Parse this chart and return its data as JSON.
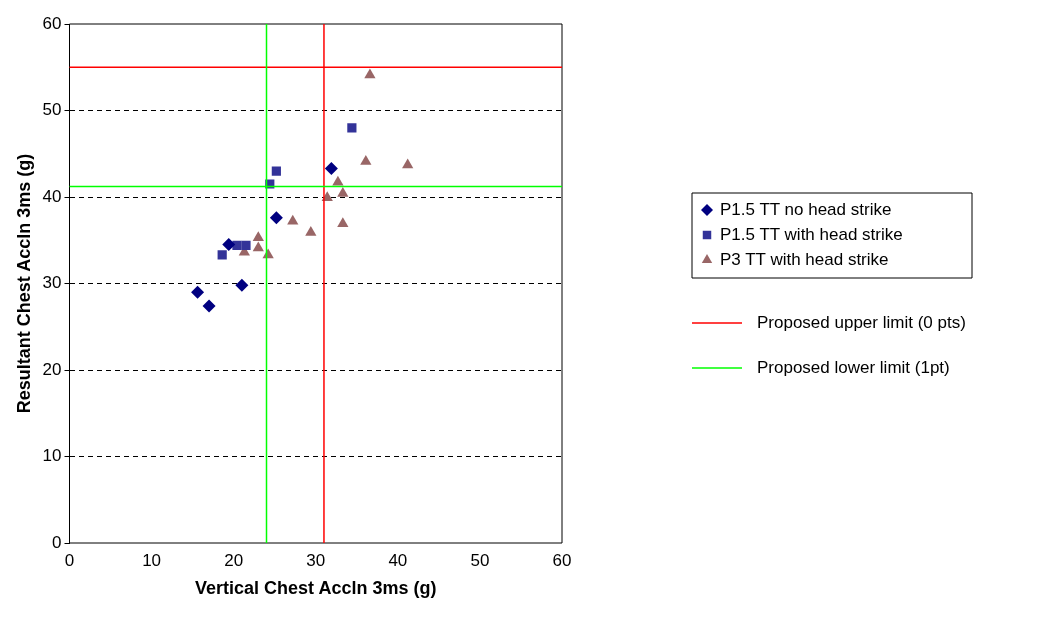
{
  "chart_data": {
    "type": "scatter",
    "xlabel": "Vertical Chest Accln 3ms (g)",
    "ylabel": "Resultant Chest Accln 3ms (g)",
    "xlim": [
      0,
      60
    ],
    "xticks": [
      0,
      10,
      20,
      30,
      40,
      50,
      60
    ],
    "ylim": [
      0,
      60
    ],
    "yticks": [
      0,
      10,
      20,
      30,
      40,
      50,
      60
    ],
    "grid": "y",
    "legend": "right",
    "series": [
      {
        "name": "P1.5 TT no head strike",
        "color": "#000080",
        "marker": "diamond",
        "x": [
          15.6,
          17,
          21,
          19.4,
          25.2,
          31.9
        ],
        "values": [
          29,
          27.4,
          29.8,
          34.5,
          37.6,
          43.3
        ]
      },
      {
        "name": "P1.5 TT with head strike",
        "color": "#333399",
        "marker": "square",
        "x": [
          18.6,
          20.4,
          21.5,
          24.4,
          25.2,
          34.4
        ],
        "values": [
          33.3,
          34.4,
          34.4,
          41.5,
          43,
          48
        ]
      },
      {
        "name": "P3 TT with head strike",
        "color": "#996666",
        "marker": "triangle",
        "x": [
          23,
          21.3,
          23,
          24.2,
          27.2,
          29.4,
          31.4,
          32.7,
          33.3,
          33.3,
          36.1,
          41.2,
          36.6
        ],
        "values": [
          35.3,
          33.6,
          34.1,
          33.3,
          37.2,
          35.9,
          39.9,
          41.7,
          40.4,
          36.9,
          44.1,
          43.7,
          54.1
        ]
      }
    ],
    "ref_lines": [
      {
        "axis": "y",
        "value": 55,
        "label": "Proposed upper limit (0 pts)",
        "color": "#ff0000"
      },
      {
        "axis": "x",
        "value": 31,
        "color": "#ff0000"
      },
      {
        "axis": "y",
        "value": 41.2,
        "label": "Proposed lower limit (1pt)",
        "color": "#00ff00"
      },
      {
        "axis": "x",
        "value": 24,
        "color": "#00ff00"
      }
    ]
  }
}
